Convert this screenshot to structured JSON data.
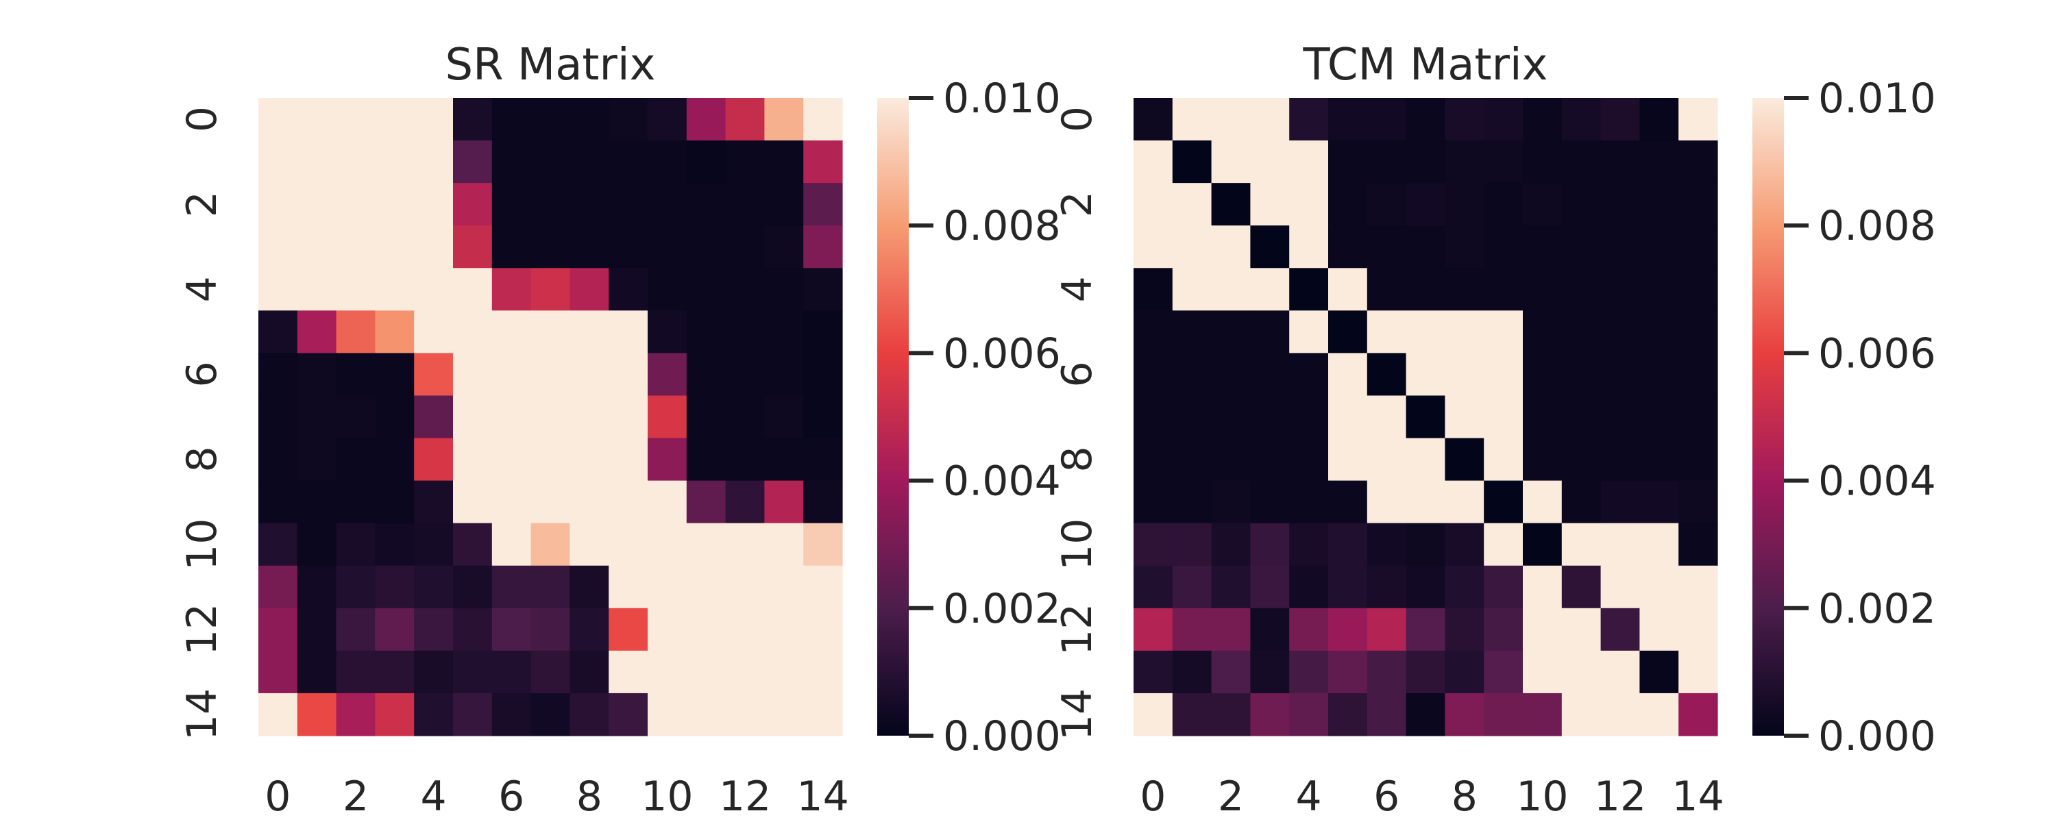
{
  "colors": {
    "colormap": "rocket",
    "stops": [
      "#03051a",
      "#4c1d4b",
      "#a11a5b",
      "#e83f3f",
      "#f69c73",
      "#faebdd"
    ],
    "text": "#262626",
    "background": "#ffffff"
  },
  "chart_data": [
    {
      "type": "heatmap",
      "title": "SR Matrix",
      "x_ticks": [
        "0",
        "2",
        "4",
        "6",
        "8",
        "10",
        "12",
        "14"
      ],
      "y_ticks": [
        "0",
        "2",
        "4",
        "6",
        "8",
        "10",
        "12",
        "14"
      ],
      "n": 15,
      "vmin": 0.0,
      "vmax": 0.01,
      "colorbar_ticks": [
        "0.000",
        "0.002",
        "0.004",
        "0.006",
        "0.008",
        "0.010"
      ],
      "values": [
        [
          0.01,
          0.01,
          0.01,
          0.01,
          0.01,
          0.0006,
          0.0002,
          0.0002,
          0.0002,
          0.0003,
          0.0005,
          0.0038,
          0.005,
          0.0085,
          0.01
        ],
        [
          0.01,
          0.01,
          0.01,
          0.01,
          0.01,
          0.0022,
          0.0002,
          0.0002,
          0.0002,
          0.0002,
          0.0002,
          0.0001,
          0.0002,
          0.0002,
          0.0045
        ],
        [
          0.01,
          0.01,
          0.01,
          0.01,
          0.01,
          0.0045,
          0.0002,
          0.0002,
          0.0002,
          0.0002,
          0.0002,
          0.0002,
          0.0002,
          0.0002,
          0.0024
        ],
        [
          0.01,
          0.01,
          0.01,
          0.01,
          0.01,
          0.005,
          0.0002,
          0.0002,
          0.0002,
          0.0002,
          0.0002,
          0.0002,
          0.0002,
          0.0003,
          0.0032
        ],
        [
          0.01,
          0.01,
          0.01,
          0.01,
          0.01,
          0.01,
          0.0048,
          0.0052,
          0.0045,
          0.0004,
          0.0002,
          0.0002,
          0.0002,
          0.0002,
          0.0003
        ],
        [
          0.0005,
          0.0042,
          0.0068,
          0.0078,
          0.01,
          0.01,
          0.01,
          0.01,
          0.01,
          0.01,
          0.0004,
          0.0002,
          0.0002,
          0.0002,
          0.0001
        ],
        [
          0.0002,
          0.0003,
          0.0002,
          0.0002,
          0.0065,
          0.01,
          0.01,
          0.01,
          0.01,
          0.01,
          0.0028,
          0.0002,
          0.0002,
          0.0002,
          0.0001
        ],
        [
          0.0002,
          0.0003,
          0.0003,
          0.0002,
          0.0025,
          0.01,
          0.01,
          0.01,
          0.01,
          0.01,
          0.0055,
          0.0002,
          0.0002,
          0.0003,
          0.0001
        ],
        [
          0.0002,
          0.0003,
          0.0002,
          0.0002,
          0.0055,
          0.01,
          0.01,
          0.01,
          0.01,
          0.01,
          0.0035,
          0.0002,
          0.0002,
          0.0002,
          0.0002
        ],
        [
          0.0002,
          0.0002,
          0.0002,
          0.0002,
          0.0006,
          0.01,
          0.01,
          0.01,
          0.01,
          0.01,
          0.01,
          0.0025,
          0.0012,
          0.0045,
          0.0003
        ],
        [
          0.0008,
          0.0002,
          0.0006,
          0.0004,
          0.0005,
          0.0012,
          0.01,
          0.0088,
          0.01,
          0.01,
          0.01,
          0.01,
          0.01,
          0.01,
          0.0092
        ],
        [
          0.003,
          0.0004,
          0.0008,
          0.001,
          0.0008,
          0.0006,
          0.0014,
          0.0014,
          0.0006,
          0.01,
          0.01,
          0.01,
          0.01,
          0.01,
          0.01
        ],
        [
          0.0035,
          0.0004,
          0.0015,
          0.0025,
          0.0015,
          0.001,
          0.002,
          0.0018,
          0.0008,
          0.0062,
          0.01,
          0.01,
          0.01,
          0.01,
          0.01
        ],
        [
          0.0035,
          0.0004,
          0.001,
          0.001,
          0.0006,
          0.0008,
          0.0008,
          0.0012,
          0.0006,
          0.01,
          0.01,
          0.01,
          0.01,
          0.01,
          0.01
        ],
        [
          0.01,
          0.0062,
          0.0042,
          0.0052,
          0.0008,
          0.0014,
          0.0006,
          0.0004,
          0.001,
          0.0015,
          0.01,
          0.01,
          0.01,
          0.01,
          0.01
        ]
      ]
    },
    {
      "type": "heatmap",
      "title": "TCM Matrix",
      "x_ticks": [
        "0",
        "2",
        "4",
        "6",
        "8",
        "10",
        "12",
        "14"
      ],
      "y_ticks": [
        "0",
        "2",
        "4",
        "6",
        "8",
        "10",
        "12",
        "14"
      ],
      "n": 15,
      "vmin": 0.0,
      "vmax": 0.01,
      "colorbar_ticks": [
        "0.000",
        "0.002",
        "0.004",
        "0.006",
        "0.008",
        "0.010"
      ],
      "values": [
        [
          0.0003,
          0.01,
          0.01,
          0.01,
          0.0008,
          0.0004,
          0.0004,
          0.0002,
          0.0006,
          0.0005,
          0.0002,
          0.0005,
          0.0007,
          0.0001,
          0.01
        ],
        [
          0.01,
          0.0,
          0.01,
          0.01,
          0.01,
          0.0002,
          0.0002,
          0.0002,
          0.0003,
          0.0003,
          0.0002,
          0.0002,
          0.0002,
          0.0002,
          0.0002
        ],
        [
          0.01,
          0.01,
          0.0,
          0.01,
          0.01,
          0.0002,
          0.0003,
          0.0004,
          0.0003,
          0.0002,
          0.0003,
          0.0002,
          0.0002,
          0.0002,
          0.0002
        ],
        [
          0.01,
          0.01,
          0.01,
          0.0,
          0.01,
          0.0002,
          0.0002,
          0.0002,
          0.0003,
          0.0002,
          0.0002,
          0.0002,
          0.0002,
          0.0002,
          0.0002
        ],
        [
          0.0001,
          0.01,
          0.01,
          0.01,
          0.0,
          0.01,
          0.0002,
          0.0002,
          0.0002,
          0.0002,
          0.0002,
          0.0002,
          0.0002,
          0.0002,
          0.0002
        ],
        [
          0.0002,
          0.0002,
          0.0002,
          0.0002,
          0.01,
          0.0,
          0.01,
          0.01,
          0.01,
          0.01,
          0.0002,
          0.0002,
          0.0002,
          0.0002,
          0.0002
        ],
        [
          0.0002,
          0.0002,
          0.0002,
          0.0002,
          0.0002,
          0.01,
          0.0,
          0.01,
          0.01,
          0.01,
          0.0002,
          0.0002,
          0.0002,
          0.0002,
          0.0002
        ],
        [
          0.0002,
          0.0002,
          0.0002,
          0.0002,
          0.0002,
          0.01,
          0.01,
          0.0,
          0.01,
          0.01,
          0.0002,
          0.0002,
          0.0002,
          0.0002,
          0.0002
        ],
        [
          0.0002,
          0.0002,
          0.0002,
          0.0002,
          0.0002,
          0.01,
          0.01,
          0.01,
          0.0,
          0.01,
          0.0002,
          0.0002,
          0.0002,
          0.0002,
          0.0002
        ],
        [
          0.0002,
          0.0002,
          0.0003,
          0.0002,
          0.0002,
          0.0002,
          0.01,
          0.01,
          0.01,
          0.0,
          0.01,
          0.0002,
          0.0004,
          0.0004,
          0.0003
        ],
        [
          0.0012,
          0.0012,
          0.0006,
          0.0014,
          0.0006,
          0.0008,
          0.0004,
          0.0003,
          0.0006,
          0.01,
          0.0,
          0.01,
          0.01,
          0.01,
          0.0002
        ],
        [
          0.0008,
          0.0015,
          0.0008,
          0.0015,
          0.0004,
          0.0008,
          0.0006,
          0.0004,
          0.0008,
          0.0015,
          0.01,
          0.0012,
          0.01,
          0.01,
          0.01
        ],
        [
          0.0045,
          0.003,
          0.003,
          0.0004,
          0.003,
          0.0038,
          0.0045,
          0.0022,
          0.001,
          0.0018,
          0.01,
          0.01,
          0.0015,
          0.01,
          0.01
        ],
        [
          0.0008,
          0.0005,
          0.002,
          0.0005,
          0.0018,
          0.0025,
          0.0018,
          0.0012,
          0.0008,
          0.0022,
          0.01,
          0.01,
          0.01,
          0.0001,
          0.01
        ],
        [
          0.01,
          0.0012,
          0.0012,
          0.0028,
          0.0025,
          0.0012,
          0.0018,
          0.0002,
          0.0032,
          0.0028,
          0.0028,
          0.01,
          0.01,
          0.01,
          0.0038
        ]
      ]
    }
  ]
}
